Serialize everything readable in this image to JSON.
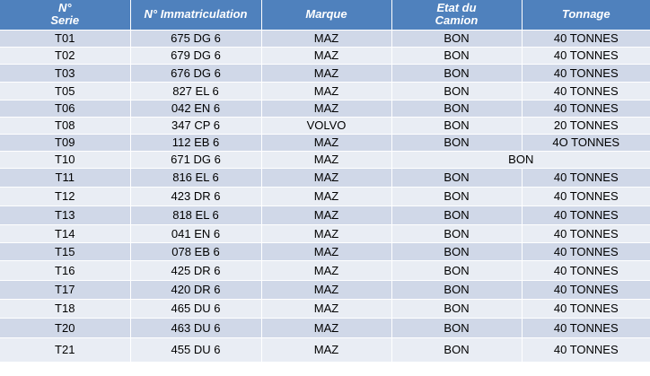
{
  "table": {
    "headers": [
      "N°\nSerie",
      "N° Immatriculation",
      "Marque",
      "Etat du\nCamion",
      "Tonnage"
    ],
    "header_lines": [
      [
        "N°",
        "Serie"
      ],
      [
        "N° Immatriculation"
      ],
      [
        "Marque"
      ],
      [
        "Etat du",
        "Camion"
      ],
      [
        "Tonnage"
      ]
    ],
    "rows": [
      {
        "serie": "T01",
        "immatriculation": "675 DG 6",
        "marque": "MAZ",
        "etat": "BON",
        "tonnage": "40 TONNES"
      },
      {
        "serie": "T02",
        "immatriculation": "679 DG 6",
        "marque": "MAZ",
        "etat": "BON",
        "tonnage": "40 TONNES"
      },
      {
        "serie": "T03",
        "immatriculation": "676 DG 6",
        "marque": "MAZ",
        "etat": "BON",
        "tonnage": "40 TONNES"
      },
      {
        "serie": "T05",
        "immatriculation": "827 EL 6",
        "marque": "MAZ",
        "etat": "BON",
        "tonnage": "40 TONNES"
      },
      {
        "serie": "T06",
        "immatriculation": "042 EN 6",
        "marque": "MAZ",
        "etat": "BON",
        "tonnage": "40 TONNES"
      },
      {
        "serie": "T08",
        "immatriculation": "347 CP 6",
        "marque": "VOLVO",
        "etat": "BON",
        "tonnage": "20 TONNES"
      },
      {
        "serie": "T09",
        "immatriculation": "112 EB 6",
        "marque": "MAZ",
        "etat": "BON",
        "tonnage": "4O TONNES"
      },
      {
        "serie": "T10",
        "immatriculation": "671 DG 6",
        "marque": "MAZ",
        "etat": "BON",
        "tonnage": "",
        "merged_etat_tonnage": true
      },
      {
        "serie": "T11",
        "immatriculation": "816 EL 6",
        "marque": "MAZ",
        "etat": "BON",
        "tonnage": "40 TONNES"
      },
      {
        "serie": "T12",
        "immatriculation": "423 DR 6",
        "marque": "MAZ",
        "etat": "BON",
        "tonnage": "40 TONNES"
      },
      {
        "serie": "T13",
        "immatriculation": "818 EL 6",
        "marque": "MAZ",
        "etat": "BON",
        "tonnage": "40 TONNES"
      },
      {
        "serie": "T14",
        "immatriculation": "041 EN 6",
        "marque": "MAZ",
        "etat": "BON",
        "tonnage": "40 TONNES"
      },
      {
        "serie": "T15",
        "immatriculation": "078 EB 6",
        "marque": "MAZ",
        "etat": "BON",
        "tonnage": "40 TONNES"
      },
      {
        "serie": "T16",
        "immatriculation": "425 DR 6",
        "marque": "MAZ",
        "etat": "BON",
        "tonnage": "40 TONNES"
      },
      {
        "serie": "T17",
        "immatriculation": "420 DR 6",
        "marque": "MAZ",
        "etat": "BON",
        "tonnage": "40 TONNES"
      },
      {
        "serie": "T18",
        "immatriculation": "465 DU 6",
        "marque": "MAZ",
        "etat": "BON",
        "tonnage": "40 TONNES"
      },
      {
        "serie": "T20",
        "immatriculation": "463 DU 6",
        "marque": "MAZ",
        "etat": "BON",
        "tonnage": "40 TONNES"
      },
      {
        "serie": "T21",
        "immatriculation": "455 DU 6",
        "marque": "MAZ",
        "etat": "BON",
        "tonnage": "40 TONNES"
      }
    ]
  },
  "colors": {
    "header_bg": "#4f81bd",
    "row_dark": "#d0d8e8",
    "row_light": "#e9edf4"
  }
}
